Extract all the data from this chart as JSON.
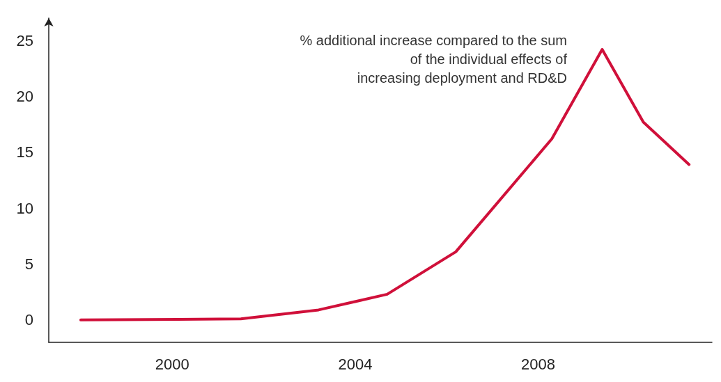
{
  "chart_data": {
    "type": "line",
    "x": [
      1998,
      2001.5,
      2003.2,
      2004.7,
      2006.2,
      2008.3,
      2009.4,
      2010.3,
      2011.3
    ],
    "series": [
      {
        "color": "#d0103a",
        "values": [
          0,
          0.1,
          0.9,
          2.3,
          6.1,
          16.2,
          24.2,
          17.7,
          13.9
        ]
      }
    ],
    "xlim": [
      1997.3,
      2011.8
    ],
    "xticks": [
      2000,
      2004,
      2008
    ],
    "ylim": [
      -2,
      27
    ],
    "yticks": [
      0,
      5,
      10,
      15,
      20,
      25
    ],
    "grid": false,
    "marker": "none",
    "line_style": "solid",
    "annotations": [
      "% additional increase compared to the sum\nof the individual effects of\nincreasing deployment and RD&D"
    ]
  }
}
